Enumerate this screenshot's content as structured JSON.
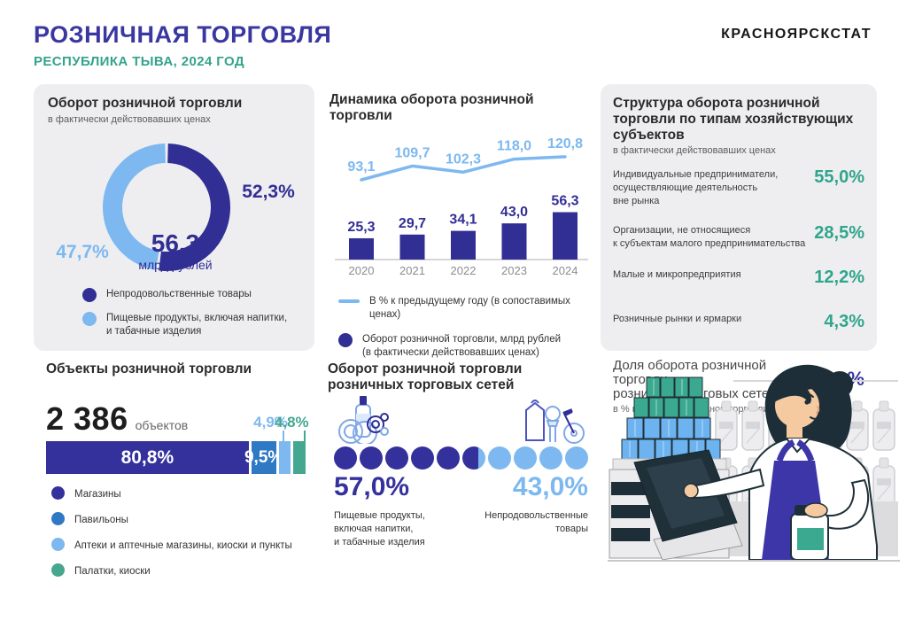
{
  "header": {
    "title": "РОЗНИЧНАЯ ТОРГОВЛЯ",
    "subtitle": "РЕСПУБЛИКА ТЫВА, 2024 ГОД",
    "brand": "КРАСНОЯРСКСТАТ"
  },
  "colors": {
    "indigo": "#312e94",
    "medium_blue": "#2f78c3",
    "light_blue": "#7db8f0",
    "teal": "#45a78f",
    "value_green": "#2fa58c",
    "header_indigo": "#3a37a0",
    "panel_gray": "#eeeef1"
  },
  "chart_data": [
    {
      "id": "turnover-structure-donut",
      "type": "donut",
      "title": "Оборот розничной торговли",
      "subtitle": "в фактически действовавших ценах",
      "center_value": "56,3",
      "center_unit": "млрд рублей",
      "slices": [
        {
          "label": "Непродовольственные товары",
          "value": 52.3,
          "display": "52,3%",
          "color": "#312e94"
        },
        {
          "label": "Пищевые продукты, включая напитки,\nи табачные изделия",
          "value": 47.7,
          "display": "47,7%",
          "color": "#7db8f0"
        }
      ]
    },
    {
      "id": "turnover-dynamics",
      "type": "bar+line",
      "title": "Динамика оборота розничной торговли",
      "categories": [
        "2020",
        "2021",
        "2022",
        "2023",
        "2024"
      ],
      "series": [
        {
          "name": "В % к предыдущему году (в сопоставимых ценах)",
          "type": "line",
          "color": "#7db8f0",
          "values": [
            93.1,
            109.7,
            102.3,
            118.0,
            120.8
          ],
          "labels": [
            "93,1",
            "109,7",
            "102,3",
            "118,0",
            "120,8"
          ]
        },
        {
          "name": "Оборот розничной торговли, млрд рублей\n(в фактически действовавших ценах)",
          "type": "bar",
          "color": "#312e94",
          "values": [
            25.3,
            29.7,
            34.1,
            43.0,
            56.3
          ],
          "labels": [
            "25,3",
            "29,7",
            "34,1",
            "43,0",
            "56,3"
          ]
        }
      ]
    },
    {
      "id": "structure-by-entity-type",
      "type": "table",
      "title": "Структура оборота розничной торговли по типам хозяйствующих субъектов",
      "subtitle": "в фактически действовавших ценах",
      "rows": [
        {
          "label": "Индивидуальные предприниматели,\nосуществляющие деятельность\nвне рынка",
          "value": 55.0,
          "display": "55,0%"
        },
        {
          "label": "Организации, не относящиеся\nк субъектам малого предпринимательства",
          "value": 28.5,
          "display": "28,5%"
        },
        {
          "label": "Малые и микропредприятия",
          "value": 12.2,
          "display": "12,2%"
        },
        {
          "label": "Розничные рынки и ярмарки",
          "value": 4.3,
          "display": "4,3%"
        }
      ],
      "footer": {
        "label": "Доля оборота розничной торговли\nрозничных торговых сетей",
        "sub": "в % к обороту розничной торговли",
        "value": 20.0,
        "display": "20,0%"
      }
    },
    {
      "id": "retail-objects",
      "type": "stacked-bar",
      "title": "Объекты розничной торговли",
      "total": "2 386",
      "total_unit": "объектов",
      "segments": [
        {
          "label": "Магазины",
          "value": 80.8,
          "display": "80,8%",
          "color": "#34319c",
          "label_pos": "inside"
        },
        {
          "label": "Павильоны",
          "value": 9.5,
          "display": "9,5%",
          "color": "#2f78c3",
          "label_pos": "inside"
        },
        {
          "label": "Аптеки и аптечные магазины, киоски и пункты",
          "value": 4.9,
          "display": "4,9%",
          "color": "#7db8f0",
          "label_pos": "above"
        },
        {
          "label": "Палатки, киоски",
          "value": 4.8,
          "display": "4,8%",
          "color": "#45a78f",
          "label_pos": "above"
        }
      ]
    },
    {
      "id": "chain-stores-turnover",
      "type": "waffle-dots",
      "title": "Оборот розничной торговли розничных торговых сетей",
      "total_dots": 10,
      "series": [
        {
          "name": "Пищевые продукты,\nвключая напитки,\nи табачные изделия",
          "value": 57.0,
          "display": "57,0%",
          "color": "#34319c",
          "icon": "food-products-icon"
        },
        {
          "name": "Непродовольственные\nтовары",
          "value": 43.0,
          "display": "43,0%",
          "color": "#7db8f0",
          "icon": "non-food-goods-icon"
        }
      ]
    }
  ]
}
